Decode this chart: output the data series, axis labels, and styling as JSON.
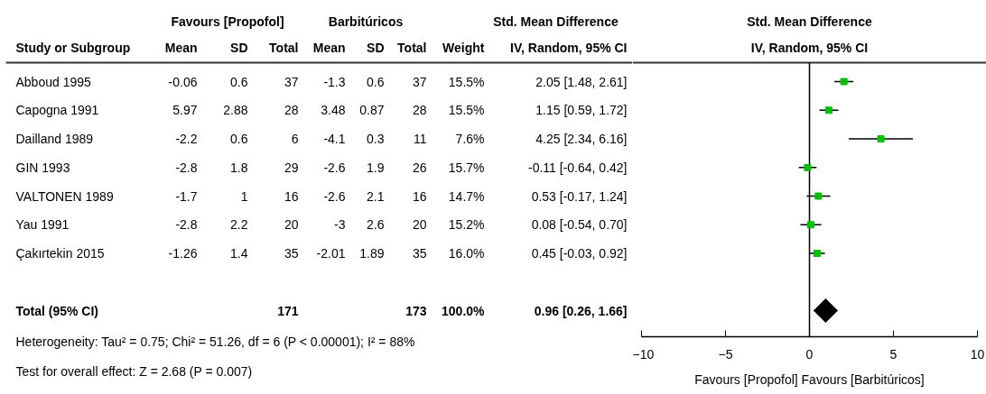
{
  "chart_data": [
    {
      "type": "other",
      "title": "Favours [Propofol]",
      "ylabel": "Study or Subgroup",
      "y_categories": [
        "Abboud 1995",
        "Capogna 1991",
        "Dailland 1989",
        "GIN 1993",
        "VALTONEN 1989",
        "Yau 1991",
        "Çakırtekin 2015",
        null,
        "Total (95% CI)"
      ],
      "categories": [
        "Mean",
        "SD",
        "Total"
      ],
      "cell_labels": [
        [
          "-0.06",
          "0.6",
          "37"
        ],
        [
          "5.97",
          "2.88",
          "28"
        ],
        [
          "-2.2",
          "0.6",
          "6"
        ],
        [
          "-2.8",
          "1.8",
          "29"
        ],
        [
          "-1.7",
          "1",
          "16"
        ],
        [
          "-2.8",
          "2.2",
          "20"
        ],
        [
          "-1.26",
          "1.4",
          "35"
        ],
        [
          null,
          null,
          null
        ],
        [
          null,
          null,
          "171"
        ]
      ],
      "annotations": [
        "Heterogeneity: Tau² = 0.75; Chi² = 51.26, df = 6 (P < 0.00001); I² = 88%",
        "Test for overall effect: Z = 2.68 (P = 0.007)"
      ]
    },
    {
      "type": "other",
      "title": "Barbitúricos",
      "categories": [
        "Mean",
        "SD",
        "Total"
      ],
      "cell_labels": [
        [
          "-1.3",
          "0.6",
          "37"
        ],
        [
          "3.48",
          "0.87",
          "28"
        ],
        [
          "-4.1",
          "0.3",
          "11"
        ],
        [
          "-2.6",
          "1.9",
          "26"
        ],
        [
          "-2.6",
          "2.1",
          "16"
        ],
        [
          "-3",
          "2.6",
          "20"
        ],
        [
          "-2.01",
          "1.89",
          "35"
        ],
        [
          null,
          null,
          null
        ],
        [
          null,
          null,
          "173"
        ]
      ]
    },
    {
      "type": "other",
      "categories": [
        "Weight"
      ],
      "cell_labels": [
        [
          "15.5%"
        ],
        [
          "15.5%"
        ],
        [
          "7.6%"
        ],
        [
          "15.7%"
        ],
        [
          "14.7%"
        ],
        [
          "15.2%"
        ],
        [
          "16.0%"
        ],
        [
          null
        ],
        [
          "100.0%"
        ]
      ]
    },
    {
      "type": "other",
      "title": "Std. Mean Difference",
      "categories": [
        "IV, Random, 95% CI"
      ],
      "cell_labels": [
        [
          "2.05 [1.48, 2.61]"
        ],
        [
          "1.15 [0.59, 1.72]"
        ],
        [
          "4.25 [2.34, 6.16]"
        ],
        [
          "-0.11 [-0.64, 0.42]"
        ],
        [
          "0.53 [-0.17, 1.24]"
        ],
        [
          "0.08 [-0.54, 0.70]"
        ],
        [
          "0.45 [-0.03, 0.92]"
        ],
        [
          null
        ],
        [
          "0.96 [0.26, 1.66]"
        ]
      ]
    },
    {
      "type": "scatter",
      "orientation": "horizontal",
      "title": "Std. Mean Difference",
      "subtitle": "IV, Random, 95% CI",
      "xlabel": "Favours [Propofol] Favours [Barbitúricos]",
      "categories": [
        null,
        null,
        null,
        null,
        null,
        null,
        null,
        null,
        null
      ],
      "xlim": [
        -10,
        10
      ],
      "xticks": [
        -10,
        -5,
        0,
        5,
        10
      ],
      "ref_lines": [
        {
          "axis": "x",
          "value": 0
        }
      ],
      "series": [
        {
          "color": "#00c000",
          "marker": "square",
          "values": [
            2.05,
            1.15,
            4.25,
            -0.11,
            0.53,
            0.08,
            0.45,
            null,
            null
          ],
          "errors": [
            [
              1.48,
              2.61
            ],
            [
              0.59,
              1.72
            ],
            [
              2.34,
              6.16
            ],
            [
              -0.64,
              0.42
            ],
            [
              -0.17,
              1.24
            ],
            [
              -0.54,
              0.7
            ],
            [
              -0.03,
              0.92
            ],
            null,
            null
          ]
        },
        {
          "color": "#000000",
          "marker": "diamond",
          "values": [
            null,
            null,
            null,
            null,
            null,
            null,
            null,
            null,
            0.96
          ],
          "errors": [
            null,
            null,
            null,
            null,
            null,
            null,
            null,
            null,
            [
              0.26,
              1.66
            ]
          ]
        }
      ]
    }
  ]
}
